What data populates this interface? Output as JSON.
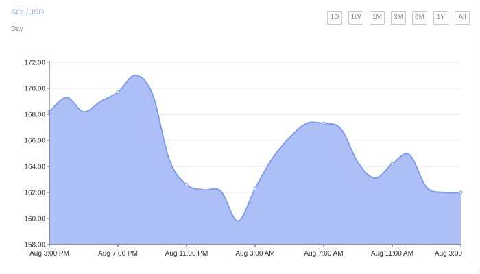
{
  "header": {
    "pair": "SOL/USD",
    "interval": "Day"
  },
  "range_buttons": [
    "1D",
    "1W",
    "1M",
    "3M",
    "6M",
    "1Y",
    "All"
  ],
  "colors": {
    "area_fill": "#aebff7",
    "line": "#7f9de9",
    "marker": "#ffffff",
    "axis": "#555555",
    "grid": "#e6e6e6"
  },
  "chart_data": {
    "type": "area",
    "title": "SOL/USD",
    "xlabel": "",
    "ylabel": "",
    "ylim": [
      158,
      172
    ],
    "yticks": [
      "158.00",
      "160.00",
      "162.00",
      "164.00",
      "166.00",
      "168.00",
      "170.00",
      "172.00"
    ],
    "xlim": [
      "Aug 3:00 PM",
      "Aug 3:00"
    ],
    "xticks": [
      "Aug 3:00 PM",
      "Aug 7:00 PM",
      "Aug 11:00 PM",
      "Aug 3:00 AM",
      "Aug 7:00 AM",
      "Aug 11:00 AM",
      "Aug 3:00"
    ],
    "grid": true,
    "series": [
      {
        "x": [
          "Aug 3:00 PM",
          "Aug 4:00 PM",
          "Aug 5:00 PM",
          "Aug 6:00 PM",
          "Aug 7:00 PM",
          "Aug 8:00 PM",
          "Aug 9:00 PM",
          "Aug 10:00 PM",
          "Aug 11:00 PM",
          "Aug 12:00 AM",
          "Aug 1:00 AM",
          "Aug 2:00 AM",
          "Aug 3:00 AM",
          "Aug 4:00 AM",
          "Aug 5:00 AM",
          "Aug 6:00 AM",
          "Aug 7:00 AM",
          "Aug 8:00 AM",
          "Aug 9:00 AM",
          "Aug 10:00 AM",
          "Aug 11:00 AM",
          "Aug 12:00 PM",
          "Aug 1:00 PM",
          "Aug 2:00 PM",
          "Aug 3:00"
        ],
        "y": [
          168.2,
          169.3,
          168.2,
          169.0,
          169.7,
          171.0,
          169.6,
          164.5,
          162.6,
          162.2,
          162.1,
          159.8,
          162.3,
          164.6,
          166.2,
          167.3,
          167.3,
          166.9,
          164.3,
          163.1,
          164.2,
          164.9,
          162.4,
          162.0,
          162.0
        ],
        "markers": [
          0,
          4,
          8,
          12,
          16,
          20,
          24
        ]
      }
    ]
  }
}
